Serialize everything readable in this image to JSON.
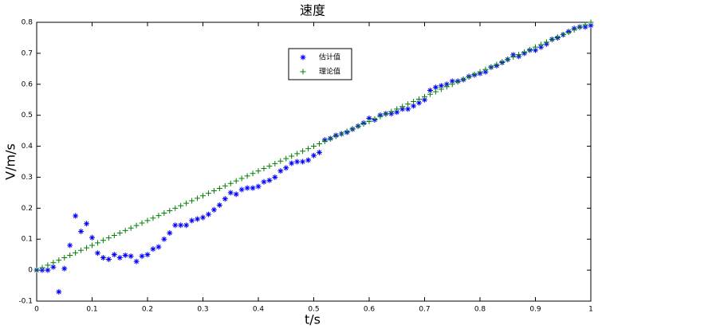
{
  "chart_data": {
    "type": "scatter",
    "title": "速度",
    "x_label": "t/s",
    "y_label": "V/m/s",
    "x": [
      0,
      0.01,
      0.02,
      0.03,
      0.04,
      0.05,
      0.06,
      0.07,
      0.08,
      0.09,
      0.1,
      0.11,
      0.12,
      0.13,
      0.14,
      0.15,
      0.16,
      0.17,
      0.18,
      0.19,
      0.2,
      0.21,
      0.22,
      0.23,
      0.24,
      0.25,
      0.26,
      0.27,
      0.28,
      0.29,
      0.3,
      0.31,
      0.32,
      0.33,
      0.34,
      0.35,
      0.36,
      0.37,
      0.38,
      0.39,
      0.4,
      0.41,
      0.42,
      0.43,
      0.44,
      0.45,
      0.46,
      0.47,
      0.48,
      0.49,
      0.5,
      0.51,
      0.52,
      0.53,
      0.54,
      0.55,
      0.56,
      0.57,
      0.58,
      0.59,
      0.6,
      0.61,
      0.62,
      0.63,
      0.64,
      0.65,
      0.66,
      0.67,
      0.68,
      0.69,
      0.7,
      0.71,
      0.72,
      0.73,
      0.74,
      0.75,
      0.76,
      0.77,
      0.78,
      0.79,
      0.8,
      0.81,
      0.82,
      0.83,
      0.84,
      0.85,
      0.86,
      0.87,
      0.88,
      0.89,
      0.9,
      0.91,
      0.92,
      0.93,
      0.94,
      0.95,
      0.96,
      0.97,
      0.98,
      0.99,
      1
    ],
    "series": [
      {
        "name": "估计值",
        "color": "#0000ff",
        "marker": "*",
        "values": [
          0,
          0,
          0,
          0.01,
          -0.07,
          0.005,
          0.08,
          0.175,
          0.125,
          0.15,
          0.105,
          0.055,
          0.04,
          0.035,
          0.05,
          0.04,
          0.048,
          0.045,
          0.028,
          0.045,
          0.05,
          0.068,
          0.075,
          0.1,
          0.12,
          0.145,
          0.145,
          0.145,
          0.16,
          0.165,
          0.17,
          0.18,
          0.195,
          0.21,
          0.23,
          0.25,
          0.245,
          0.26,
          0.265,
          0.265,
          0.27,
          0.285,
          0.29,
          0.3,
          0.32,
          0.33,
          0.345,
          0.35,
          0.35,
          0.355,
          0.37,
          0.38,
          0.42,
          0.425,
          0.435,
          0.44,
          0.445,
          0.455,
          0.465,
          0.475,
          0.49,
          0.485,
          0.5,
          0.505,
          0.505,
          0.51,
          0.52,
          0.52,
          0.53,
          0.54,
          0.55,
          0.58,
          0.59,
          0.595,
          0.6,
          0.61,
          0.61,
          0.615,
          0.625,
          0.63,
          0.635,
          0.64,
          0.655,
          0.66,
          0.67,
          0.68,
          0.695,
          0.69,
          0.7,
          0.71,
          0.71,
          0.72,
          0.73,
          0.745,
          0.75,
          0.76,
          0.77,
          0.78,
          0.785,
          0.785,
          0.79
        ]
      },
      {
        "name": "理论值",
        "color": "#008000",
        "marker": "+",
        "values": [
          0,
          0.008,
          0.016,
          0.024,
          0.032,
          0.04,
          0.048,
          0.056,
          0.064,
          0.072,
          0.08,
          0.088,
          0.096,
          0.104,
          0.112,
          0.12,
          0.128,
          0.136,
          0.144,
          0.152,
          0.16,
          0.168,
          0.176,
          0.184,
          0.192,
          0.2,
          0.208,
          0.216,
          0.224,
          0.232,
          0.24,
          0.248,
          0.256,
          0.264,
          0.272,
          0.28,
          0.288,
          0.296,
          0.304,
          0.312,
          0.32,
          0.328,
          0.336,
          0.344,
          0.352,
          0.36,
          0.368,
          0.376,
          0.384,
          0.392,
          0.4,
          0.408,
          0.416,
          0.424,
          0.432,
          0.44,
          0.448,
          0.456,
          0.464,
          0.472,
          0.48,
          0.488,
          0.496,
          0.504,
          0.512,
          0.52,
          0.528,
          0.536,
          0.544,
          0.552,
          0.56,
          0.568,
          0.576,
          0.584,
          0.592,
          0.6,
          0.608,
          0.616,
          0.624,
          0.632,
          0.64,
          0.648,
          0.656,
          0.664,
          0.672,
          0.68,
          0.688,
          0.696,
          0.704,
          0.712,
          0.72,
          0.728,
          0.736,
          0.744,
          0.752,
          0.76,
          0.768,
          0.776,
          0.784,
          0.792,
          0.8
        ]
      }
    ],
    "xlim": [
      0,
      1
    ],
    "xticks": [
      0,
      0.1,
      0.2,
      0.3,
      0.4,
      0.5,
      0.6,
      0.7,
      0.8,
      0.9,
      1
    ],
    "ylim": [
      -0.1,
      0.8
    ],
    "yticks": [
      -0.1,
      0,
      0.1,
      0.2,
      0.3,
      0.4,
      0.5,
      0.6,
      0.7,
      0.8
    ],
    "grid": false,
    "legend": "top"
  }
}
